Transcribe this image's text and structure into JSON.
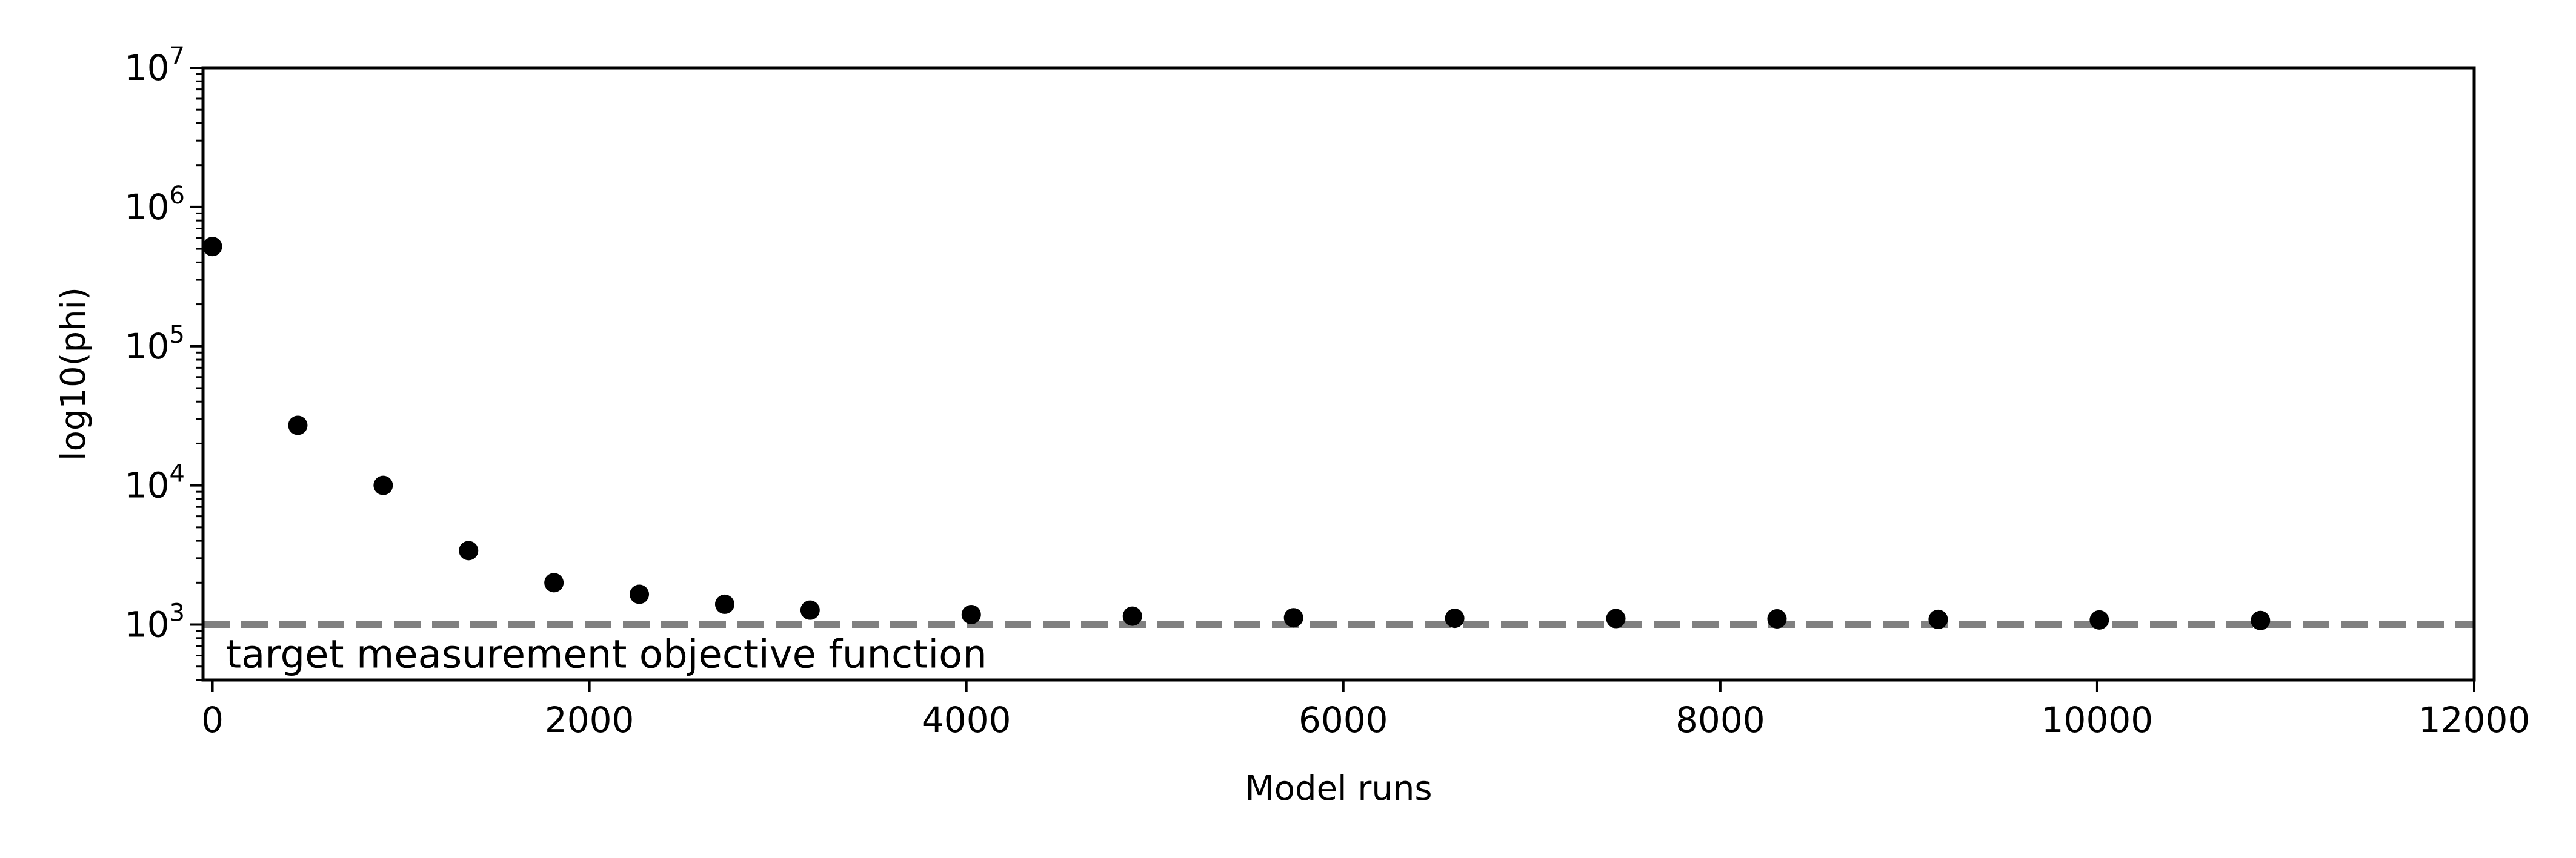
{
  "chart_data": {
    "type": "scatter",
    "title": "",
    "xlabel": "Model runs",
    "ylabel": "log10(phi)",
    "xlim": [
      -50,
      12000
    ],
    "ylim": [
      400,
      10000000
    ],
    "yscale": "log",
    "grid": false,
    "x_ticks": [
      "0",
      "2000",
      "4000",
      "6000",
      "8000",
      "10000",
      "12000"
    ],
    "y_ticks": [
      {
        "base": "10",
        "exp": "3"
      },
      {
        "base": "10",
        "exp": "4"
      },
      {
        "base": "10",
        "exp": "5"
      },
      {
        "base": "10",
        "exp": "6"
      },
      {
        "base": "10",
        "exp": "7"
      }
    ],
    "marker_color": "#000000",
    "points": {
      "x": [
        0,
        453,
        906,
        1359,
        1812,
        2265,
        2718,
        3171,
        4026,
        4881,
        5736,
        6591,
        7446,
        8301,
        9156,
        10011,
        10866
      ],
      "y": [
        520000,
        27000,
        10000,
        3400,
        2000,
        1650,
        1400,
        1270,
        1180,
        1150,
        1120,
        1110,
        1105,
        1100,
        1090,
        1080,
        1070
      ]
    },
    "reference_line": {
      "y": 1000,
      "style": "dashed",
      "color": "#808080",
      "label": "target measurement objective function"
    }
  }
}
